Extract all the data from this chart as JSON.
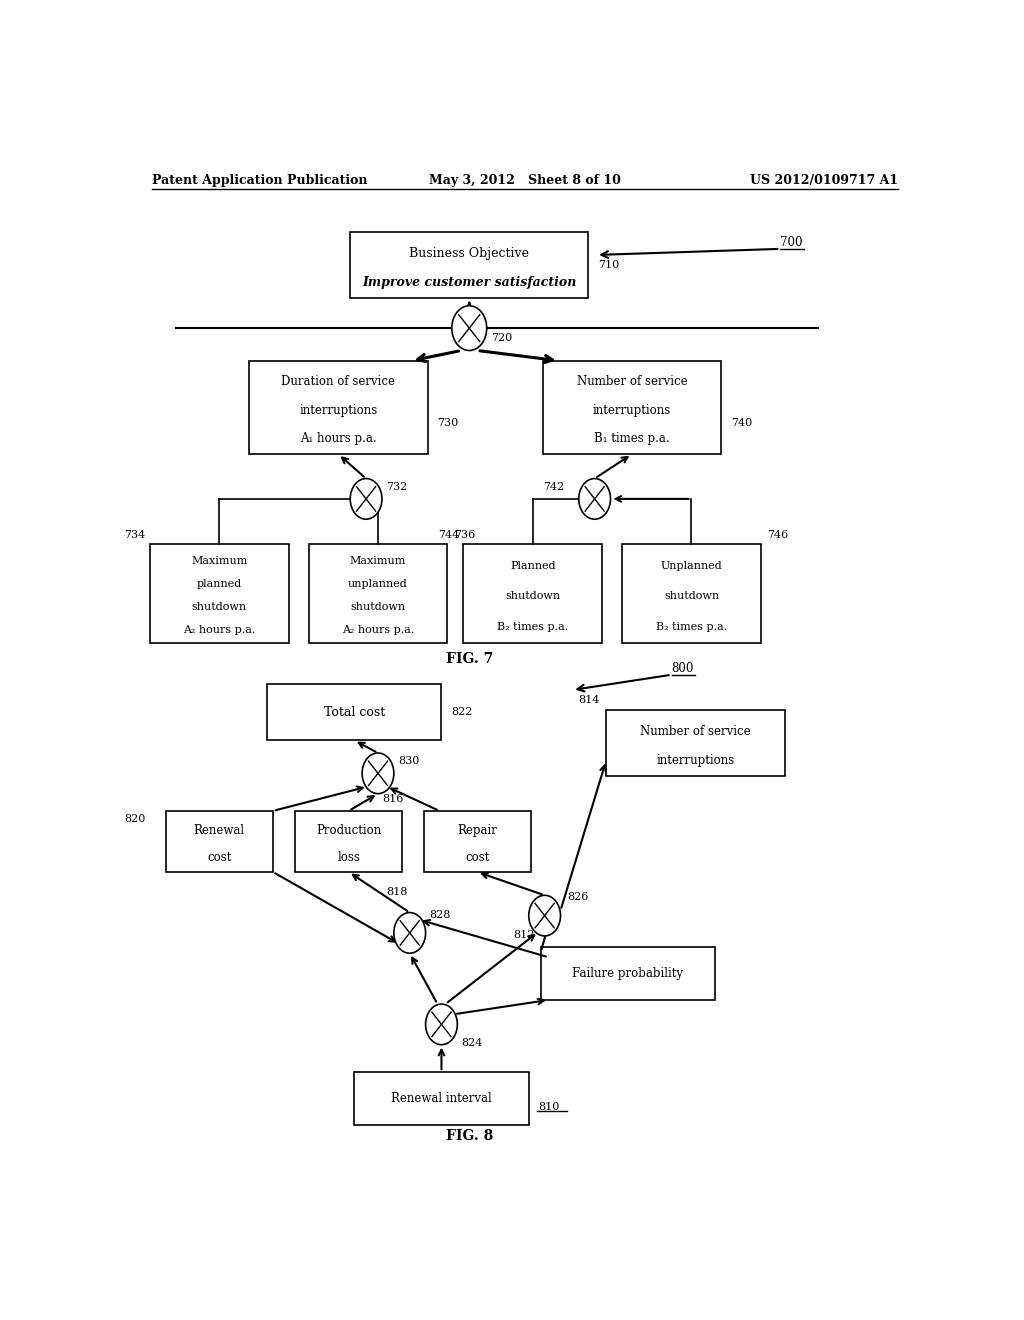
{
  "header": {
    "left": "Patent Application Publication",
    "center": "May 3, 2012   Sheet 8 of 10",
    "right": "US 2012/0109717 A1"
  },
  "fig7_label": "FIG. 7",
  "fig8_label": "FIG. 8"
}
